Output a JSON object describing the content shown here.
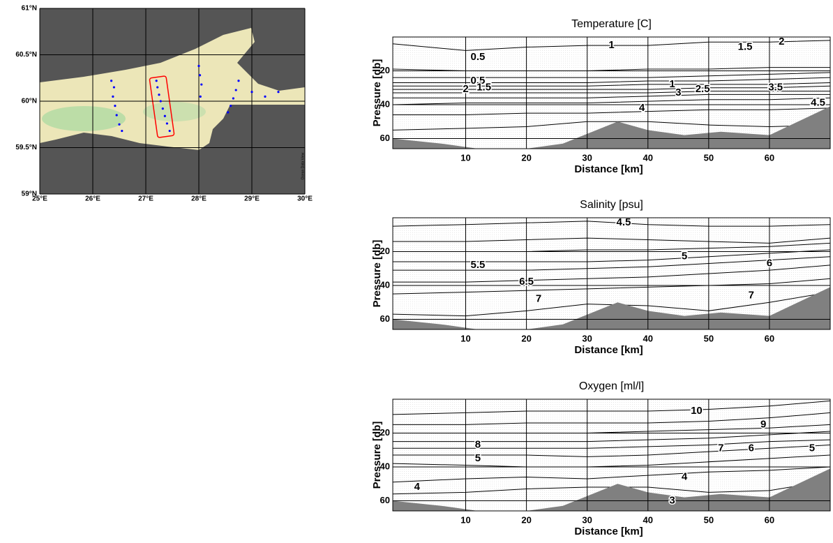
{
  "chart_data": [
    {
      "type": "map",
      "xlim": [
        25,
        30
      ],
      "ylim": [
        59,
        61
      ],
      "xticks": [
        {
          "value": 25,
          "label": "25°E"
        },
        {
          "value": 26,
          "label": "26°E"
        },
        {
          "value": 27,
          "label": "27°E"
        },
        {
          "value": 28,
          "label": "28°E"
        },
        {
          "value": 29,
          "label": "29°E"
        },
        {
          "value": 30,
          "label": "30°E"
        }
      ],
      "yticks": [
        {
          "value": 59,
          "label": "59°N"
        },
        {
          "value": 59.5,
          "label": "59.5°N"
        },
        {
          "value": 60,
          "label": "60°N"
        },
        {
          "value": 60.5,
          "label": "60.5°N"
        },
        {
          "value": 61,
          "label": "61°N"
        }
      ],
      "grid": true,
      "watermark": "Ocean Data View",
      "stations": {
        "color": "#0000ff",
        "x": [
          26.35,
          26.4,
          26.38,
          26.42,
          26.45,
          26.5,
          26.55,
          27.2,
          27.22,
          27.25,
          27.28,
          27.32,
          27.36,
          27.4,
          27.45,
          28.0,
          28.02,
          28.05,
          28.03,
          28.75,
          28.7,
          28.65,
          28.6,
          28.55,
          29.0,
          29.25,
          29.5
        ],
        "y": [
          60.22,
          60.15,
          60.05,
          59.95,
          59.85,
          59.75,
          59.68,
          60.22,
          60.15,
          60.07,
          60.0,
          59.92,
          59.84,
          59.76,
          59.68,
          60.38,
          60.28,
          60.18,
          60.05,
          60.22,
          60.12,
          60.03,
          59.95,
          59.88,
          60.1,
          60.05,
          60.1
        ]
      }
    },
    {
      "type": "contour",
      "title": "Temperature [C]",
      "xlabel": "Distance [km]",
      "ylabel": "Pressure [db]",
      "xlim": [
        -2,
        70
      ],
      "ylim": [
        0,
        66
      ],
      "invert_y": true,
      "grid": true,
      "xticks": [
        10,
        20,
        30,
        40,
        50,
        60
      ],
      "yticks": [
        20,
        40,
        60
      ],
      "x": [
        -2,
        10,
        20,
        30,
        40,
        50,
        60,
        70
      ],
      "contours": [
        [
          4,
          8,
          6,
          5,
          5,
          3,
          3,
          2
        ],
        [
          19,
          20,
          20,
          20,
          19,
          19,
          18,
          18
        ],
        [
          24,
          24,
          24,
          24,
          24,
          23,
          22,
          21
        ],
        [
          27,
          27,
          27,
          27,
          26,
          26,
          25,
          24
        ],
        [
          29,
          29,
          29,
          29,
          28,
          28,
          28,
          27
        ],
        [
          31,
          31,
          31,
          31,
          31,
          30,
          30,
          29
        ],
        [
          33,
          33,
          33,
          33,
          33,
          32,
          32,
          32
        ],
        [
          36,
          36,
          36,
          36,
          35,
          34,
          34,
          34
        ],
        [
          40,
          39,
          39,
          39,
          38,
          37,
          37,
          36
        ],
        [
          46,
          46,
          45,
          45,
          44,
          43,
          43,
          42
        ],
        [
          55,
          54,
          53,
          50,
          50,
          52,
          53,
          52
        ]
      ],
      "labels": [
        {
          "value": 0.5,
          "x": 12,
          "y": 12
        },
        {
          "value": 1,
          "x": 34,
          "y": 5
        },
        {
          "value": 1.5,
          "x": 56,
          "y": 6
        },
        {
          "value": 2,
          "x": 62,
          "y": 3
        },
        {
          "value": 0.5,
          "x": 12,
          "y": 26
        },
        {
          "value": 2,
          "x": 10,
          "y": 31
        },
        {
          "value": 1.5,
          "x": 13,
          "y": 30
        },
        {
          "value": 1,
          "x": 44,
          "y": 28
        },
        {
          "value": 3,
          "x": 45,
          "y": 33
        },
        {
          "value": 2.5,
          "x": 49,
          "y": 31
        },
        {
          "value": 3.5,
          "x": 61,
          "y": 30
        },
        {
          "value": 4,
          "x": 39,
          "y": 42
        },
        {
          "value": 4.5,
          "x": 68,
          "y": 39
        }
      ],
      "bottom": {
        "color": "#808080",
        "x": [
          -2,
          6,
          12,
          20,
          26,
          35,
          40,
          46,
          52,
          60,
          70
        ],
        "y": [
          60,
          63,
          66,
          66,
          63,
          50,
          55,
          58,
          56,
          58,
          41
        ]
      }
    },
    {
      "type": "contour",
      "title": "Salinity [psu]",
      "xlabel": "Distance [km]",
      "ylabel": "Pressure [db]",
      "xlim": [
        -2,
        70
      ],
      "ylim": [
        0,
        66
      ],
      "invert_y": true,
      "grid": true,
      "xticks": [
        10,
        20,
        30,
        40,
        50,
        60
      ],
      "yticks": [
        20,
        40,
        60
      ],
      "x": [
        -2,
        10,
        20,
        30,
        40,
        50,
        60,
        70
      ],
      "contours": [
        [
          5,
          4,
          3,
          2,
          4,
          5,
          5,
          4
        ],
        [
          14,
          14,
          13,
          12,
          13,
          14,
          15,
          12
        ],
        [
          20,
          20,
          20,
          19,
          19,
          18,
          17,
          15
        ],
        [
          26,
          26,
          26,
          26,
          25,
          23,
          21,
          19
        ],
        [
          31,
          31,
          31,
          30,
          29,
          27,
          25,
          23
        ],
        [
          38,
          38,
          37,
          36,
          35,
          33,
          31,
          28
        ],
        [
          45,
          44,
          43,
          42,
          41,
          40,
          39,
          36
        ],
        [
          57,
          58,
          55,
          51,
          52,
          55,
          50,
          44
        ]
      ],
      "labels": [
        {
          "value": 4.5,
          "x": 36,
          "y": 3
        },
        {
          "value": 5.5,
          "x": 12,
          "y": 28
        },
        {
          "value": 5,
          "x": 46,
          "y": 23
        },
        {
          "value": 6,
          "x": 60,
          "y": 27
        },
        {
          "value": 6.5,
          "x": 20,
          "y": 38
        },
        {
          "value": 7,
          "x": 22,
          "y": 48
        },
        {
          "value": 7,
          "x": 57,
          "y": 46
        }
      ],
      "bottom": {
        "color": "#808080",
        "x": [
          -2,
          6,
          12,
          20,
          26,
          35,
          40,
          46,
          52,
          60,
          70
        ],
        "y": [
          60,
          63,
          66,
          66,
          63,
          50,
          55,
          58,
          56,
          58,
          41
        ]
      }
    },
    {
      "type": "contour",
      "title": "Oxygen [ml/l]",
      "xlabel": "Distance [km]",
      "ylabel": "Pressure [db]",
      "xlim": [
        -2,
        70
      ],
      "ylim": [
        0,
        66
      ],
      "invert_y": true,
      "grid": true,
      "xticks": [
        10,
        20,
        30,
        40,
        50,
        60
      ],
      "yticks": [
        20,
        40,
        60
      ],
      "x": [
        -2,
        10,
        20,
        30,
        40,
        50,
        60,
        70
      ],
      "contours": [
        [
          9,
          8,
          7,
          7,
          7,
          6,
          4,
          1
        ],
        [
          15,
          15,
          14,
          14,
          14,
          13,
          11,
          8
        ],
        [
          20,
          20,
          20,
          20,
          19,
          18,
          17,
          15
        ],
        [
          25,
          25,
          25,
          25,
          24,
          23,
          21,
          19
        ],
        [
          29,
          29,
          29,
          29,
          28,
          27,
          25,
          24
        ],
        [
          33,
          33,
          33,
          34,
          33,
          31,
          29,
          27
        ],
        [
          38,
          39,
          40,
          40,
          39,
          37,
          35,
          33
        ],
        [
          49,
          47,
          46,
          47,
          45,
          43,
          42,
          40
        ],
        [
          56,
          55,
          53,
          52,
          52,
          55,
          54,
          48
        ]
      ],
      "labels": [
        {
          "value": 10,
          "x": 48,
          "y": 7
        },
        {
          "value": 9,
          "x": 59,
          "y": 15
        },
        {
          "value": 8,
          "x": 12,
          "y": 27
        },
        {
          "value": 7,
          "x": 52,
          "y": 29
        },
        {
          "value": 6,
          "x": 57,
          "y": 29
        },
        {
          "value": 5,
          "x": 67,
          "y": 29
        },
        {
          "value": 5,
          "x": 12,
          "y": 35
        },
        {
          "value": 4,
          "x": 46,
          "y": 46
        },
        {
          "value": 4,
          "x": 2,
          "y": 52
        },
        {
          "value": 3,
          "x": 44,
          "y": 60
        }
      ],
      "bottom": {
        "color": "#808080",
        "x": [
          -2,
          6,
          12,
          20,
          26,
          35,
          40,
          46,
          52,
          60,
          70
        ],
        "y": [
          60,
          63,
          66,
          66,
          63,
          50,
          55,
          58,
          56,
          58,
          41
        ]
      }
    }
  ]
}
